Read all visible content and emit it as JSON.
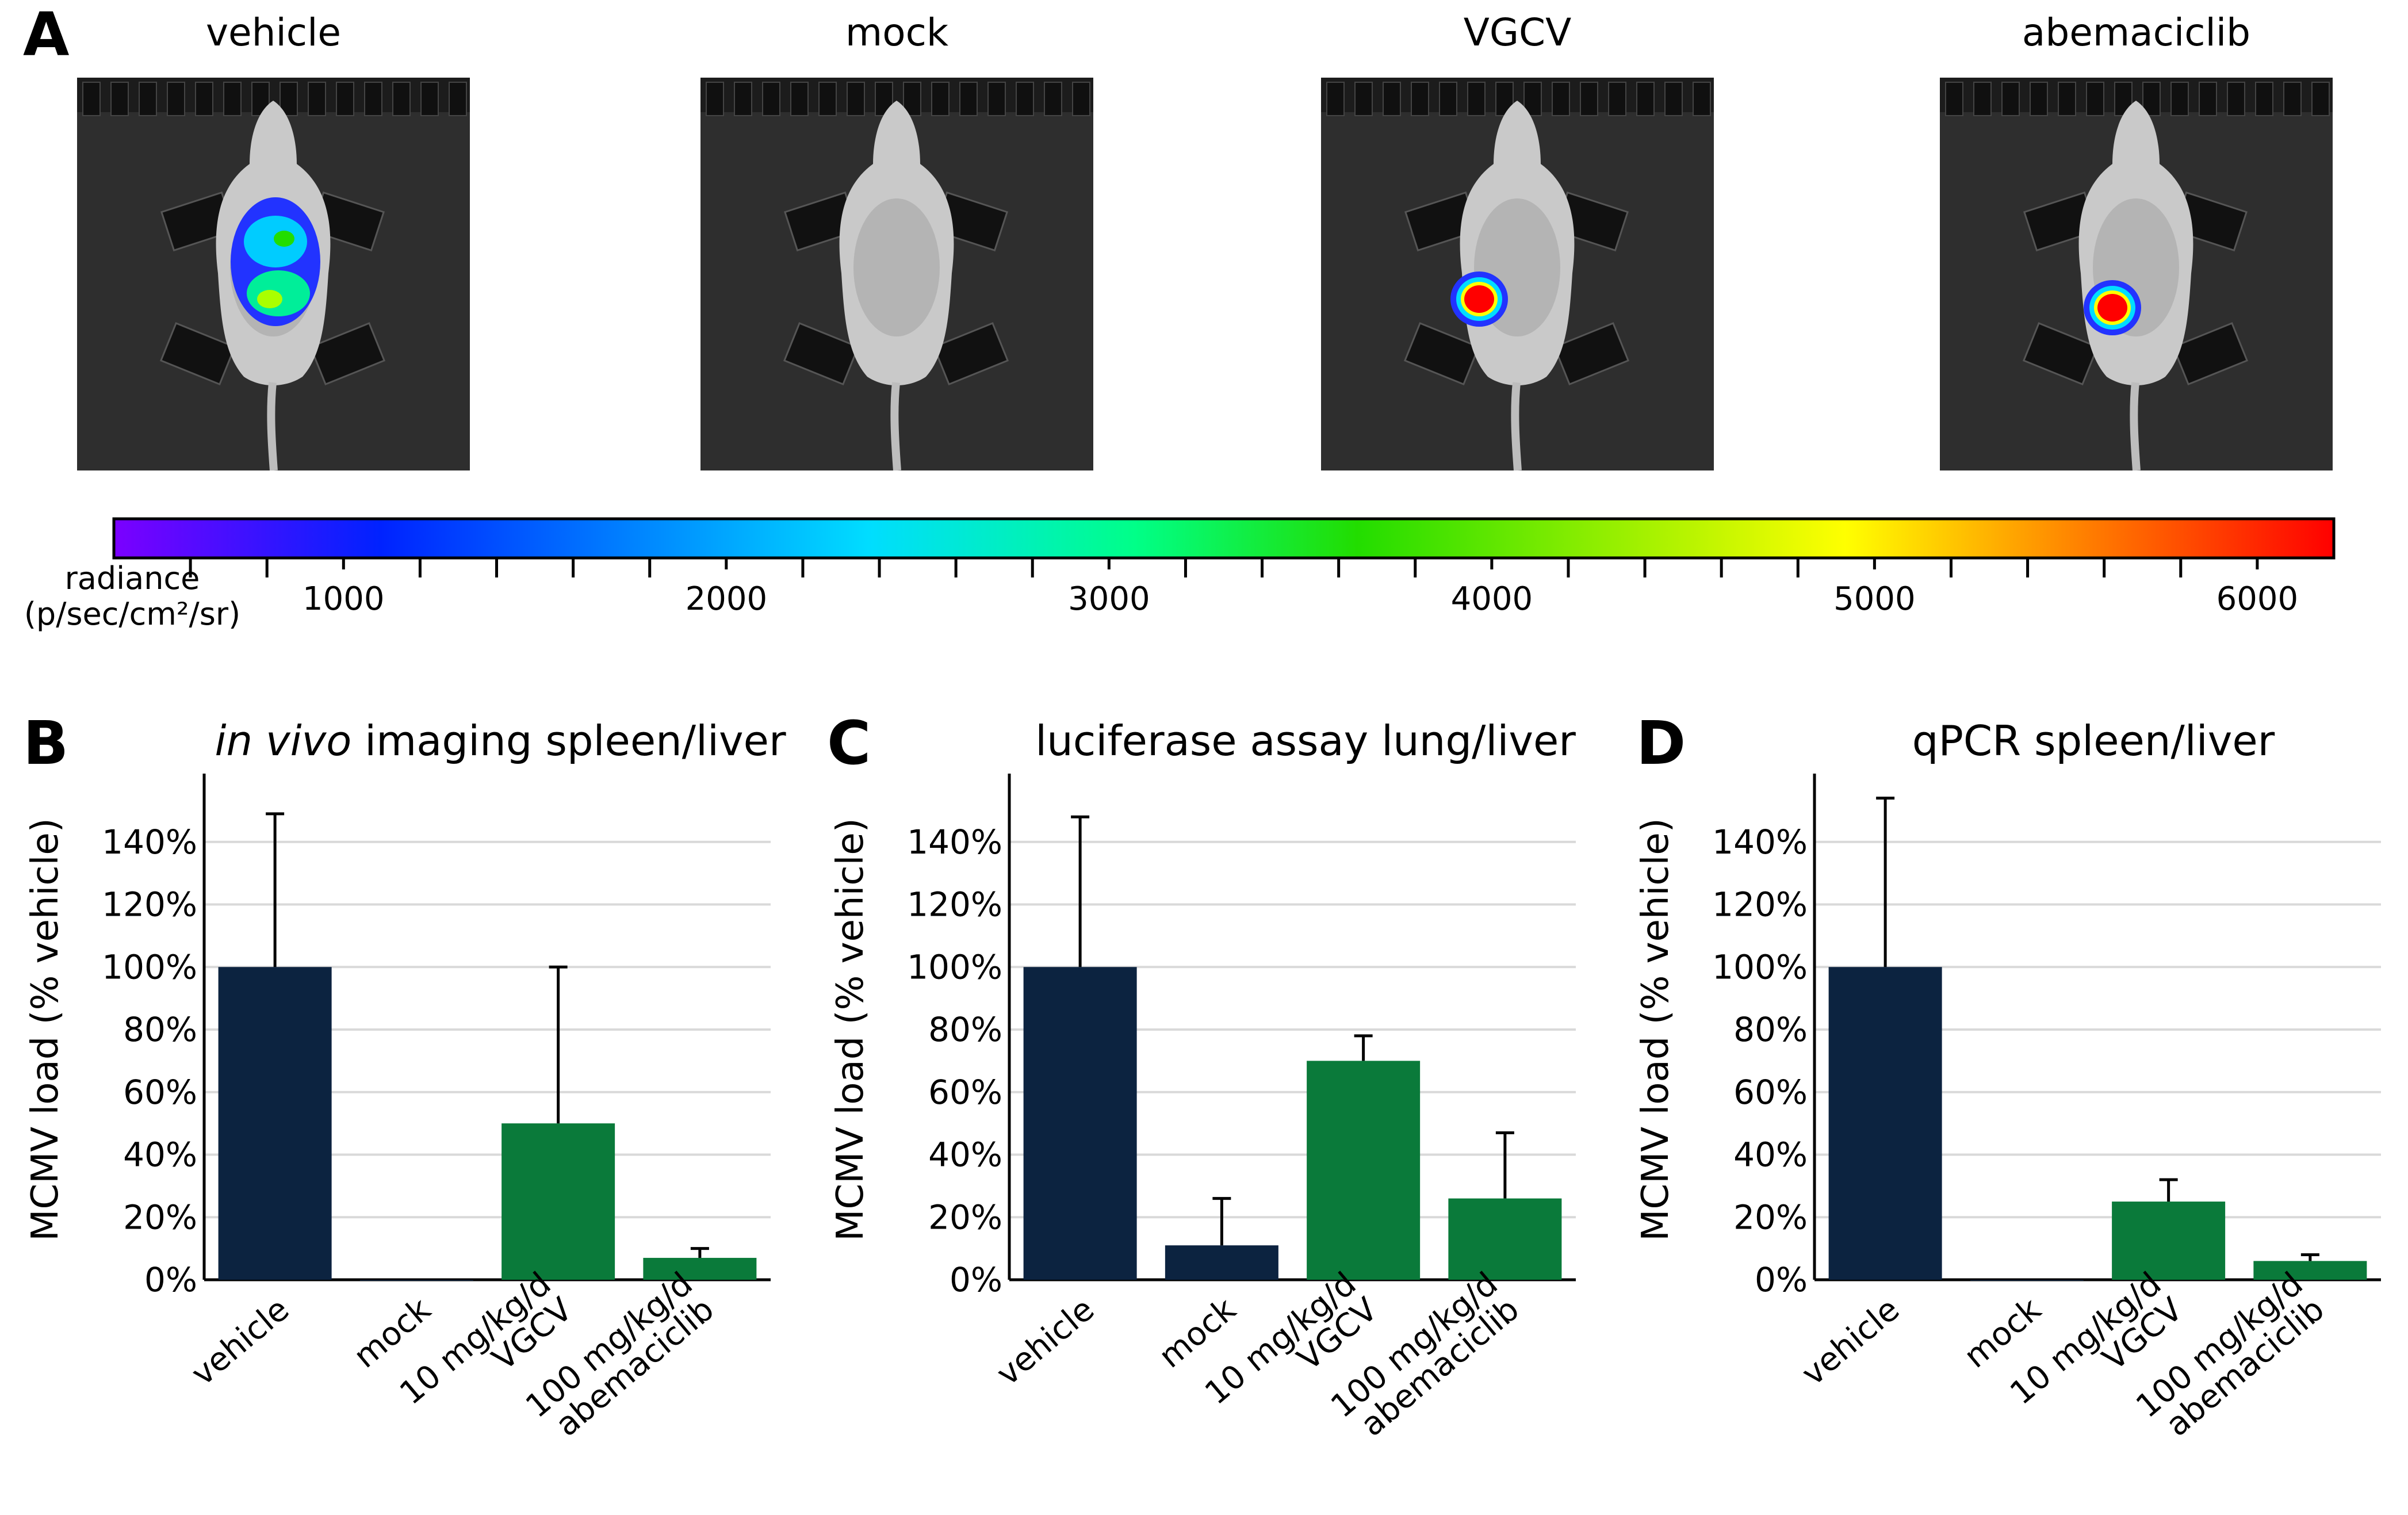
{
  "panel_a": {
    "letter": "A",
    "images": [
      {
        "title": "vehicle",
        "signal": "abdomen-multi-focal"
      },
      {
        "title": "mock",
        "signal": "none"
      },
      {
        "title": "VGCV",
        "signal": "hindlimb-focal"
      },
      {
        "title": "abemaciclib",
        "signal": "hindlimb-focal"
      }
    ],
    "colorbar": {
      "label_line1": "radiance",
      "label_line2": "(p/sec/cm²/sr)",
      "min": 400,
      "max": 6200,
      "ticks": [
        "1000",
        "2000",
        "3000",
        "4000",
        "5000",
        "6000"
      ],
      "colors": [
        "#7b00ff",
        "#0022ff",
        "#00ddff",
        "#00ff88",
        "#22dd00",
        "#ffff00",
        "#ff8800",
        "#ff0000"
      ]
    }
  },
  "chart_data": [
    {
      "type": "bar",
      "letter": "B",
      "title_italic": "in vivo",
      "title_rest": " imaging spleen/liver",
      "ylabel": "MCMV load (% vehicle)",
      "ylim": [
        0,
        160
      ],
      "yticks": [
        "0%",
        "20%",
        "40%",
        "60%",
        "80%",
        "100%",
        "120%",
        "140%"
      ],
      "categories": [
        [
          "vehicle"
        ],
        [
          "mock"
        ],
        [
          "10 mg/kg/d",
          "VGCV"
        ],
        [
          "100 mg/kg/d",
          "abemaciclib"
        ]
      ],
      "values": [
        100,
        0,
        50,
        7
      ],
      "errors": [
        49,
        0,
        50,
        3
      ],
      "colors": [
        "#0c2340",
        "#0c2340",
        "#0a7a3a",
        "#0a7a3a"
      ]
    },
    {
      "type": "bar",
      "letter": "C",
      "title_italic": "",
      "title_rest": "luciferase assay lung/liver",
      "ylabel": "MCMV load (% vehicle)",
      "ylim": [
        0,
        160
      ],
      "yticks": [
        "0%",
        "20%",
        "40%",
        "60%",
        "80%",
        "100%",
        "120%",
        "140%"
      ],
      "categories": [
        [
          "vehicle"
        ],
        [
          "mock"
        ],
        [
          "10 mg/kg/d",
          "VGCV"
        ],
        [
          "100 mg/kg/d",
          "abemaciclib"
        ]
      ],
      "values": [
        100,
        11,
        70,
        26
      ],
      "errors": [
        48,
        15,
        8,
        21
      ],
      "colors": [
        "#0c2340",
        "#0c2340",
        "#0a7a3a",
        "#0a7a3a"
      ]
    },
    {
      "type": "bar",
      "letter": "D",
      "title_italic": "",
      "title_rest": "qPCR spleen/liver",
      "ylabel": "MCMV load (% vehicle)",
      "ylim": [
        0,
        160
      ],
      "yticks": [
        "0%",
        "20%",
        "40%",
        "60%",
        "80%",
        "100%",
        "120%",
        "140%"
      ],
      "categories": [
        [
          "vehicle"
        ],
        [
          "mock"
        ],
        [
          "10 mg/kg/d",
          "VGCV"
        ],
        [
          "100 mg/kg/d",
          "abemaciclib"
        ]
      ],
      "values": [
        100,
        0,
        25,
        6
      ],
      "errors": [
        54,
        0,
        7,
        2
      ],
      "colors": [
        "#0c2340",
        "#0c2340",
        "#0a7a3a",
        "#0a7a3a"
      ]
    }
  ]
}
